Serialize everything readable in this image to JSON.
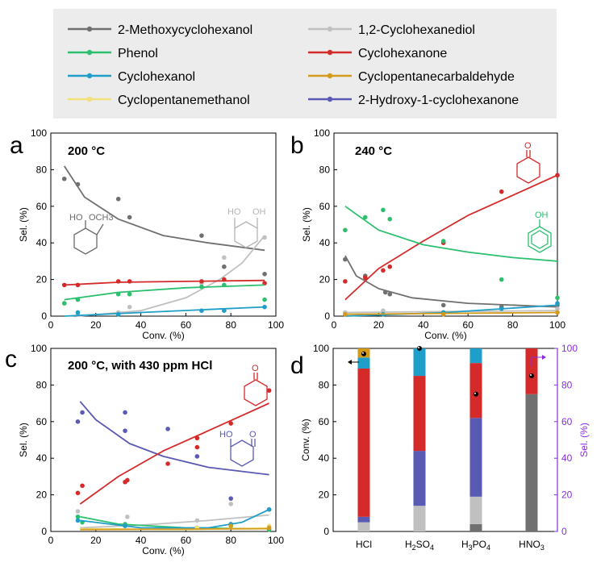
{
  "legend": {
    "entries": [
      {
        "key": "methoxy",
        "label": "2-Methoxycyclohexanol",
        "color": "#707070"
      },
      {
        "key": "diol",
        "label": "1,2-Cyclohexanediol",
        "color": "#c0c0c0"
      },
      {
        "key": "phenol",
        "label": "Phenol",
        "color": "#2bbf6e"
      },
      {
        "key": "one",
        "label": "Cyclohexanone",
        "color": "#d42a2a"
      },
      {
        "key": "ol",
        "label": "Cyclohexanol",
        "color": "#1f9ec9"
      },
      {
        "key": "ald",
        "label": "Cyclopentanecarbaldehyde",
        "color": "#d49a1a"
      },
      {
        "key": "meoh",
        "label": "Cyclopentanemethanol",
        "color": "#f2e07a"
      },
      {
        "key": "hk",
        "label": "2-Hydroxy-1-cyclohexanone",
        "color": "#5a5ab4"
      }
    ]
  },
  "structure_labels": {
    "ho": "HO",
    "och3": "OCH3",
    "oh": "OH",
    "o": "O"
  },
  "chart_data": [
    {
      "type": "scatter",
      "panel_letter": "a",
      "title": "200 °C",
      "xlabel": "Conv. (%)",
      "ylabel": "Sel. (%)",
      "xlim": [
        0,
        100
      ],
      "ylim": [
        0,
        100
      ],
      "xticks": [
        "0",
        "20",
        "40",
        "60",
        "80",
        "100"
      ],
      "yticks": [
        "0",
        "20",
        "40",
        "60",
        "80",
        "100"
      ],
      "series": [
        {
          "key": "methoxy",
          "points": [
            [
              6,
              75
            ],
            [
              12,
              72
            ],
            [
              30,
              64
            ],
            [
              35,
              54
            ],
            [
              67,
              44
            ],
            [
              77,
              27
            ],
            [
              95,
              23
            ]
          ],
          "fit": [
            [
              6,
              82
            ],
            [
              15,
              65
            ],
            [
              30,
              53
            ],
            [
              50,
              44
            ],
            [
              70,
              40
            ],
            [
              95,
              36
            ]
          ]
        },
        {
          "key": "diol",
          "points": [
            [
              12,
              1
            ],
            [
              30,
              2
            ],
            [
              35,
              5
            ],
            [
              67,
              18
            ],
            [
              77,
              32
            ],
            [
              95,
              43
            ]
          ],
          "fit": [
            [
              12,
              0
            ],
            [
              40,
              3
            ],
            [
              60,
              10
            ],
            [
              75,
              20
            ],
            [
              85,
              29
            ],
            [
              95,
              44
            ]
          ]
        },
        {
          "key": "one",
          "points": [
            [
              6,
              17
            ],
            [
              12,
              17
            ],
            [
              30,
              19
            ],
            [
              35,
              19
            ],
            [
              67,
              19
            ],
            [
              77,
              20
            ],
            [
              95,
              18
            ]
          ],
          "fit": [
            [
              6,
              17
            ],
            [
              30,
              18.5
            ],
            [
              60,
              19
            ],
            [
              95,
              19.5
            ]
          ]
        },
        {
          "key": "phenol",
          "points": [
            [
              6,
              7
            ],
            [
              12,
              9
            ],
            [
              30,
              12
            ],
            [
              35,
              12
            ],
            [
              67,
              16
            ],
            [
              77,
              17
            ],
            [
              95,
              9
            ]
          ],
          "fit": [
            [
              6,
              9
            ],
            [
              30,
              13
            ],
            [
              60,
              15.5
            ],
            [
              95,
              17
            ]
          ]
        },
        {
          "key": "ol",
          "points": [
            [
              12,
              2
            ],
            [
              30,
              1
            ],
            [
              67,
              3
            ],
            [
              77,
              3
            ],
            [
              95,
              5
            ]
          ],
          "fit": [
            [
              6,
              0
            ],
            [
              40,
              2
            ],
            [
              95,
              5
            ]
          ]
        }
      ]
    },
    {
      "type": "scatter",
      "panel_letter": "b",
      "title": "240 °C",
      "xlabel": "Conv. (%)",
      "ylabel": "Sel. (%)",
      "xlim": [
        0,
        100
      ],
      "ylim": [
        0,
        100
      ],
      "xticks": [
        "0",
        "20",
        "40",
        "60",
        "80",
        "100"
      ],
      "yticks": [
        "0",
        "20",
        "40",
        "60",
        "80",
        "100"
      ],
      "series": [
        {
          "key": "methoxy",
          "points": [
            [
              5,
              31
            ],
            [
              14,
              22
            ],
            [
              23,
              13
            ],
            [
              25,
              12
            ],
            [
              49,
              6
            ],
            [
              75,
              5
            ],
            [
              100,
              6
            ]
          ],
          "fit": [
            [
              5,
              33
            ],
            [
              10,
              22
            ],
            [
              20,
              15
            ],
            [
              35,
              10
            ],
            [
              60,
              7
            ],
            [
              100,
              5
            ]
          ]
        },
        {
          "key": "one",
          "points": [
            [
              5,
              19
            ],
            [
              14,
              21
            ],
            [
              22,
              25
            ],
            [
              25,
              27
            ],
            [
              49,
              40
            ],
            [
              75,
              68
            ],
            [
              100,
              77
            ]
          ],
          "fit": [
            [
              5,
              9
            ],
            [
              20,
              26
            ],
            [
              40,
              41
            ],
            [
              60,
              55
            ],
            [
              80,
              66
            ],
            [
              100,
              77
            ]
          ]
        },
        {
          "key": "phenol",
          "points": [
            [
              5,
              47
            ],
            [
              14,
              54
            ],
            [
              22,
              58
            ],
            [
              25,
              53
            ],
            [
              49,
              41
            ],
            [
              75,
              20
            ],
            [
              100,
              10
            ]
          ],
          "fit": [
            [
              5,
              60
            ],
            [
              20,
              47
            ],
            [
              40,
              39
            ],
            [
              60,
              35
            ],
            [
              80,
              32
            ],
            [
              100,
              30
            ]
          ]
        },
        {
          "key": "diol",
          "points": [
            [
              5,
              2
            ],
            [
              22,
              3
            ],
            [
              49,
              2
            ],
            [
              100,
              4
            ]
          ],
          "fit": [
            [
              5,
              2
            ],
            [
              50,
              2.5
            ],
            [
              100,
              3
            ]
          ]
        },
        {
          "key": "ol",
          "points": [
            [
              22,
              1
            ],
            [
              49,
              2
            ],
            [
              75,
              4
            ],
            [
              100,
              7
            ]
          ],
          "fit": [
            [
              5,
              0
            ],
            [
              50,
              2
            ],
            [
              100,
              6
            ]
          ]
        },
        {
          "key": "ald",
          "points": [
            [
              5,
              1
            ],
            [
              49,
              1
            ],
            [
              100,
              2
            ]
          ],
          "fit": [
            [
              5,
              1
            ],
            [
              100,
              2
            ]
          ]
        }
      ]
    },
    {
      "type": "scatter",
      "panel_letter": "c",
      "title": "200 °C, with 430 ppm HCl",
      "xlabel": "Conv. (%)",
      "ylabel": "Sel. (%)",
      "xlim": [
        0,
        100
      ],
      "ylim": [
        0,
        100
      ],
      "xticks": [
        "0",
        "20",
        "40",
        "60",
        "80",
        "100"
      ],
      "yticks": [
        "0",
        "20",
        "40",
        "60",
        "80",
        "100"
      ],
      "series": [
        {
          "key": "hk",
          "points": [
            [
              12,
              60
            ],
            [
              14,
              65
            ],
            [
              33,
              65
            ],
            [
              33,
              55
            ],
            [
              52,
              56
            ],
            [
              65,
              41
            ],
            [
              80,
              18
            ],
            [
              97,
              12
            ]
          ],
          "fit": [
            [
              13,
              71
            ],
            [
              20,
              61
            ],
            [
              35,
              48
            ],
            [
              50,
              41
            ],
            [
              70,
              35
            ],
            [
              97,
              31
            ]
          ]
        },
        {
          "key": "one",
          "points": [
            [
              12,
              21
            ],
            [
              14,
              25
            ],
            [
              33,
              27
            ],
            [
              34,
              28
            ],
            [
              52,
              37
            ],
            [
              65,
              46
            ],
            [
              65,
              51
            ],
            [
              80,
              59
            ],
            [
              97,
              77
            ]
          ],
          "fit": [
            [
              13,
              15
            ],
            [
              30,
              30
            ],
            [
              50,
              44
            ],
            [
              70,
              55
            ],
            [
              97,
              70
            ]
          ]
        },
        {
          "key": "diol",
          "points": [
            [
              12,
              11
            ],
            [
              34,
              8
            ],
            [
              65,
              6
            ],
            [
              80,
              15
            ],
            [
              97,
              2
            ]
          ],
          "fit": [
            [
              13,
              2
            ],
            [
              40,
              3.5
            ],
            [
              70,
              6
            ],
            [
              97,
              9
            ]
          ]
        },
        {
          "key": "phenol",
          "points": [
            [
              12,
              8
            ],
            [
              14,
              5
            ],
            [
              33,
              4
            ],
            [
              65,
              2
            ],
            [
              97,
              1
            ]
          ],
          "fit": [
            [
              13,
              8
            ],
            [
              30,
              4
            ],
            [
              60,
              2
            ],
            [
              97,
              1.5
            ]
          ]
        },
        {
          "key": "ol",
          "points": [
            [
              12,
              6
            ],
            [
              33,
              3
            ],
            [
              65,
              2
            ],
            [
              80,
              4
            ],
            [
              97,
              12
            ]
          ],
          "fit": [
            [
              13,
              6
            ],
            [
              40,
              2
            ],
            [
              70,
              2
            ],
            [
              85,
              5
            ],
            [
              97,
              12
            ]
          ]
        },
        {
          "key": "meoh",
          "points": [
            [
              65,
              2
            ],
            [
              97,
              3
            ]
          ],
          "fit": [
            [
              13,
              1.5
            ],
            [
              60,
              1
            ],
            [
              97,
              2
            ]
          ]
        },
        {
          "key": "ald",
          "points": [
            [
              80,
              3
            ],
            [
              97,
              2
            ]
          ],
          "fit": [
            [
              13,
              1
            ],
            [
              97,
              1.5
            ]
          ]
        }
      ]
    },
    {
      "type": "bar",
      "panel_letter": "d",
      "xlabel": "",
      "ylabel": "Conv. (%)",
      "y2label": "Sel. (%)",
      "ylim": [
        0,
        100
      ],
      "y2lim": [
        0,
        100
      ],
      "yticks": [
        "0",
        "20",
        "40",
        "60",
        "80",
        "100"
      ],
      "categories": [
        "HCl",
        "H2SO4",
        "H3PO4",
        "HNO3"
      ],
      "stacks": [
        {
          "category": "HCl",
          "segments": [
            [
              "methoxy",
              0
            ],
            [
              "diol",
              5
            ],
            [
              "hk",
              3
            ],
            [
              "one",
              81
            ],
            [
              "ol",
              6
            ],
            [
              "ald",
              5
            ]
          ]
        },
        {
          "category": "H2SO4",
          "segments": [
            [
              "methoxy",
              0
            ],
            [
              "diol",
              14
            ],
            [
              "hk",
              30
            ],
            [
              "one",
              41
            ],
            [
              "ol",
              15
            ],
            [
              "ald",
              0
            ]
          ]
        },
        {
          "category": "H3PO4",
          "segments": [
            [
              "methoxy",
              4
            ],
            [
              "diol",
              15
            ],
            [
              "hk",
              43
            ],
            [
              "one",
              30
            ],
            [
              "ol",
              8
            ],
            [
              "ald",
              0
            ]
          ]
        },
        {
          "category": "HNO3",
          "segments": [
            [
              "methoxy",
              75
            ],
            [
              "diol",
              0
            ],
            [
              "hk",
              0
            ],
            [
              "one",
              25
            ],
            [
              "ol",
              0
            ],
            [
              "ald",
              0
            ]
          ]
        }
      ],
      "conversion": [
        97,
        100,
        75,
        85
      ]
    }
  ]
}
